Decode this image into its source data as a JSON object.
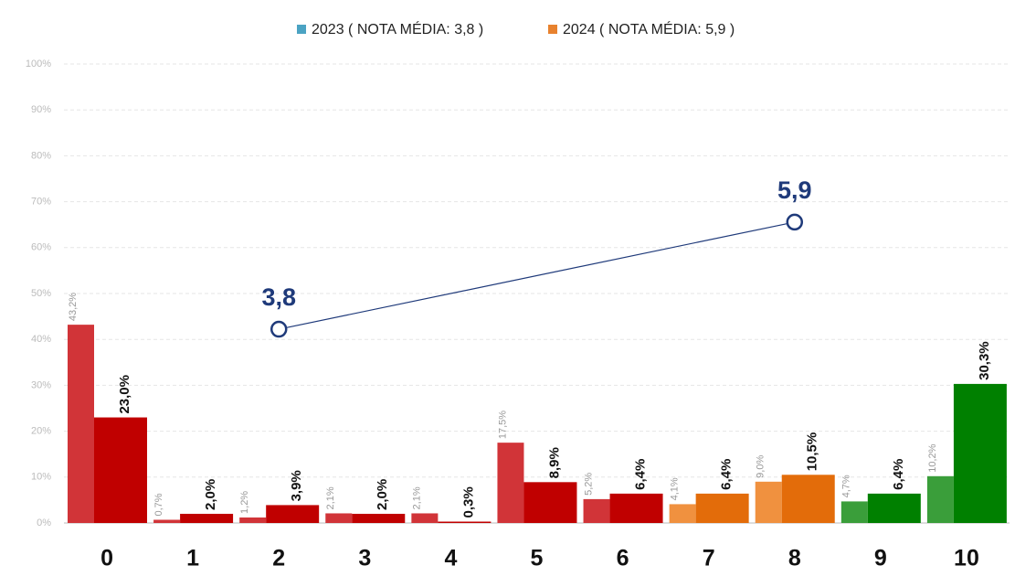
{
  "chart_data": {
    "type": "bar",
    "categories": [
      "0",
      "1",
      "2",
      "3",
      "4",
      "5",
      "6",
      "7",
      "8",
      "9",
      "10"
    ],
    "series": [
      {
        "name": "2023 ( NOTA MÉDIA: 3,8 )",
        "color": "#4ba3c3",
        "colors": [
          "#d13438",
          "#d13438",
          "#d13438",
          "#d13438",
          "#d13438",
          "#d13438",
          "#d13438",
          "#f0913f",
          "#f0913f",
          "#3a9e3a",
          "#3a9e3a"
        ],
        "values": [
          43.2,
          0.7,
          1.2,
          2.1,
          2.1,
          17.5,
          5.2,
          4.1,
          9.0,
          4.7,
          10.2
        ],
        "value_labels": [
          "43,2%",
          "0,7%",
          "1,2%",
          "2,1%",
          "2,1%",
          "17,5%",
          "5,2%",
          "4,1%",
          "9,0%",
          "4,7%",
          "10,2%"
        ]
      },
      {
        "name": "2024 ( NOTA MÉDIA: 5,9 )",
        "color": "#e8822e",
        "colors": [
          "#c00000",
          "#c00000",
          "#c00000",
          "#c00000",
          "#c00000",
          "#c00000",
          "#c00000",
          "#e36c0a",
          "#e36c0a",
          "#008000",
          "#008000"
        ],
        "values": [
          23.0,
          2.0,
          3.9,
          2.0,
          0.3,
          8.9,
          6.4,
          6.4,
          10.5,
          6.4,
          30.3
        ],
        "value_labels": [
          "23,0%",
          "2,0%",
          "3,9%",
          "2,0%",
          "0,3%",
          "8,9%",
          "6,4%",
          "6,4%",
          "10,5%",
          "6,4%",
          "30,3%"
        ]
      }
    ],
    "average": {
      "type": "line",
      "axis": "y2",
      "categories": [
        "2",
        "8"
      ],
      "values": [
        3.8,
        5.9
      ],
      "value_labels": [
        "3,8",
        "5,9"
      ],
      "color": "#1f3a7a"
    },
    "ylim": [
      0,
      100
    ],
    "yticks": [
      {
        "value": 0,
        "label": "0%"
      },
      {
        "value": 10,
        "label": "10%"
      },
      {
        "value": 20,
        "label": "20%"
      },
      {
        "value": 30,
        "label": "30%"
      },
      {
        "value": 40,
        "label": "40%"
      },
      {
        "value": 50,
        "label": "50%"
      },
      {
        "value": 60,
        "label": "60%"
      },
      {
        "value": 70,
        "label": "70%"
      },
      {
        "value": 80,
        "label": "80%"
      },
      {
        "value": 90,
        "label": "90%"
      },
      {
        "value": 100,
        "label": "100%"
      }
    ],
    "y2lim": [
      0,
      9
    ],
    "grid": true,
    "legend": "top"
  }
}
